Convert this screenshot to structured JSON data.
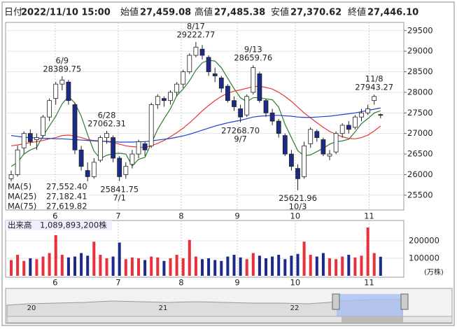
{
  "header": [
    {
      "label": "日付",
      "value": "2022/11/10 15:00",
      "color": "#000000"
    },
    {
      "label": "始値",
      "value": "27,459.08",
      "color": "#000000"
    },
    {
      "label": "高値",
      "value": "27,485.38",
      "color": "#d81b1b"
    },
    {
      "label": "安値",
      "value": "27,370.62",
      "color": "#1b8a1b"
    },
    {
      "label": "終値",
      "value": "27,446.10",
      "color": "#000000"
    }
  ],
  "chart_data": {
    "type": "candlestick",
    "categories": [
      null,
      null,
      null,
      null,
      null,
      null,
      null,
      null,
      "6/9",
      null,
      null,
      null,
      null,
      null,
      null,
      "6/28",
      null,
      "7/1",
      null,
      null,
      null,
      null,
      null,
      null,
      null,
      null,
      null,
      null,
      null,
      "8/17",
      null,
      null,
      null,
      null,
      null,
      null,
      "9/7",
      null,
      "9/13",
      null,
      null,
      null,
      null,
      null,
      null,
      "10/3",
      null,
      null,
      null,
      null,
      null,
      null,
      null,
      null,
      null,
      null,
      null,
      "11/8",
      null
    ],
    "open": [
      25900,
      26000,
      26650,
      27000,
      26850,
      26950,
      27400,
      27850,
      28200,
      28250,
      27700,
      26600,
      26100,
      25950,
      26350,
      26900,
      26900,
      26400,
      26000,
      26250,
      26500,
      26750,
      26700,
      27700,
      27850,
      27800,
      28000,
      28200,
      28500,
      28900,
      29050,
      28850,
      28450,
      28350,
      28150,
      27800,
      27600,
      27450,
      28000,
      28450,
      27800,
      27500,
      27300,
      26950,
      26500,
      26150,
      25950,
      26750,
      27050,
      26850,
      26450,
      26550,
      27000,
      27200,
      27150,
      27400,
      27500,
      27800,
      27459.08
    ],
    "high": [
      26100,
      26700,
      27050,
      27100,
      27000,
      27450,
      27850,
      28250,
      28389.75,
      28300,
      27750,
      26700,
      26300,
      26400,
      26950,
      27062.31,
      26950,
      26450,
      26300,
      26600,
      26850,
      26800,
      27750,
      27950,
      27900,
      28050,
      28250,
      28550,
      28950,
      29222.77,
      29150,
      28900,
      28600,
      28400,
      28200,
      27900,
      27700,
      27950,
      28659.76,
      28500,
      27850,
      27600,
      27350,
      27000,
      26600,
      26250,
      26800,
      27150,
      27100,
      26900,
      26600,
      27050,
      27250,
      27300,
      27450,
      27600,
      27700,
      27943.27,
      27485.38
    ],
    "low": [
      25750,
      25950,
      26500,
      26700,
      26600,
      26900,
      27300,
      27700,
      28050,
      27700,
      26500,
      26100,
      25700,
      25900,
      26300,
      26750,
      26300,
      25841.75,
      25900,
      26150,
      26400,
      26450,
      26650,
      27600,
      27650,
      27700,
      27900,
      28100,
      28450,
      28850,
      28800,
      28400,
      28250,
      28000,
      27750,
      27550,
      27268.7,
      27400,
      27950,
      27750,
      27400,
      27200,
      26900,
      26450,
      26100,
      25621.96,
      25900,
      26650,
      26800,
      26450,
      26350,
      26500,
      26900,
      27000,
      27100,
      27300,
      27450,
      27700,
      27370.62
    ],
    "close": [
      26000,
      26600,
      27000,
      26800,
      26900,
      27400,
      27800,
      28200,
      28300,
      27800,
      26600,
      26200,
      25950,
      26300,
      26900,
      27000,
      26400,
      25950,
      26200,
      26500,
      26800,
      26600,
      27700,
      27900,
      27800,
      28000,
      28200,
      28500,
      28900,
      29100,
      28900,
      28500,
      28400,
      28100,
      27800,
      27650,
      27400,
      27900,
      28600,
      27800,
      27500,
      27300,
      27000,
      26500,
      26200,
      25900,
      26700,
      27100,
      26900,
      26500,
      26500,
      27000,
      27200,
      27100,
      27400,
      27500,
      27600,
      27900,
      27446.1
    ],
    "high_labels": [
      null,
      null,
      null,
      null,
      null,
      null,
      null,
      null,
      "28389.75",
      null,
      null,
      null,
      null,
      null,
      null,
      "27062.31",
      null,
      null,
      null,
      null,
      null,
      null,
      null,
      null,
      null,
      null,
      null,
      null,
      null,
      "29222.77",
      null,
      null,
      null,
      null,
      null,
      null,
      null,
      null,
      "28659.76",
      null,
      null,
      null,
      null,
      null,
      null,
      null,
      null,
      null,
      null,
      null,
      null,
      null,
      null,
      null,
      null,
      null,
      null,
      "27943.27",
      null
    ],
    "low_labels": [
      null,
      null,
      null,
      null,
      null,
      null,
      null,
      null,
      null,
      null,
      null,
      null,
      null,
      null,
      null,
      null,
      null,
      "25841.75",
      null,
      null,
      null,
      null,
      null,
      null,
      null,
      null,
      null,
      null,
      null,
      null,
      null,
      null,
      null,
      null,
      null,
      null,
      "27268.70",
      null,
      null,
      null,
      null,
      null,
      null,
      null,
      null,
      "25621.96",
      null,
      null,
      null,
      null,
      null,
      null,
      null,
      null,
      null,
      null,
      null,
      null,
      null
    ],
    "up_color": "#ffffff",
    "down_color": "#1c2a8a",
    "outline_color": "#222222",
    "ylim": [
      25140,
      29700
    ],
    "yticks": [
      25500,
      26000,
      26500,
      27000,
      27500,
      28000,
      28500,
      29000,
      29500
    ],
    "xticks": [
      {
        "value": 6.9,
        "label": "6"
      },
      {
        "value": 16.8,
        "label": "7"
      },
      {
        "value": 26.7,
        "label": "8"
      },
      {
        "value": 35.5,
        "label": "9"
      },
      {
        "value": 44.6,
        "label": "10"
      },
      {
        "value": 56.2,
        "label": "11"
      }
    ],
    "grid": true,
    "ma": [
      {
        "name": "MA(5)",
        "legend_value": "27,552.40",
        "color": "#2e7d32",
        "values": [
          26200,
          26300,
          26500,
          26600,
          26660,
          26940,
          27180,
          27420,
          27720,
          27900,
          27740,
          27420,
          26970,
          26570,
          26390,
          26470,
          26510,
          26520,
          26500,
          26210,
          26370,
          26420,
          26760,
          27100,
          27360,
          27600,
          27920,
          28080,
          28280,
          28540,
          28720,
          28780,
          28760,
          28600,
          28340,
          28090,
          27870,
          27770,
          27870,
          27870,
          27840,
          27820,
          27640,
          27220,
          26900,
          26580,
          26460,
          26480,
          26560,
          26640,
          26740,
          26800,
          26820,
          26860,
          27040,
          27240,
          27360,
          27500,
          27552.4
        ]
      },
      {
        "name": "MA(25)",
        "legend_value": "27,182.41",
        "color": "#e53935",
        "values": [
          26700,
          26720,
          26750,
          26780,
          26800,
          26830,
          26870,
          26900,
          26950,
          26960,
          26940,
          26900,
          26850,
          26830,
          26820,
          26800,
          26780,
          26740,
          26700,
          26680,
          26670,
          26660,
          26700,
          26760,
          26830,
          26920,
          27020,
          27130,
          27260,
          27400,
          27550,
          27680,
          27800,
          27900,
          27980,
          28030,
          28060,
          28100,
          28140,
          28150,
          28120,
          28080,
          28000,
          27900,
          27780,
          27640,
          27500,
          27380,
          27260,
          27150,
          27050,
          26980,
          26920,
          26880,
          26870,
          26900,
          26960,
          27060,
          27182.41
        ]
      },
      {
        "name": "MA(75)",
        "legend_value": "27,619.82",
        "color": "#1e40d0",
        "values": [
          26950,
          26930,
          26910,
          26900,
          26890,
          26880,
          26880,
          26870,
          26870,
          26860,
          26850,
          26840,
          26830,
          26820,
          26810,
          26810,
          26800,
          26790,
          26790,
          26790,
          26800,
          26800,
          26820,
          26840,
          26860,
          26880,
          26910,
          26940,
          26980,
          27030,
          27080,
          27130,
          27180,
          27220,
          27260,
          27290,
          27320,
          27360,
          27400,
          27420,
          27430,
          27440,
          27440,
          27430,
          27420,
          27400,
          27390,
          27390,
          27400,
          27410,
          27420,
          27440,
          27460,
          27480,
          27500,
          27530,
          27560,
          27590,
          27619.82
        ]
      }
    ],
    "volume": {
      "title": "出来高",
      "total": "1,089,893,200株",
      "unit": "(万株)",
      "up_color": "#e8313a",
      "down_color": "#1c2a8a",
      "ylim": [
        0,
        288000
      ],
      "yticks": [
        100000,
        200000
      ],
      "values": [
        90000,
        120000,
        85000,
        100000,
        95000,
        110000,
        130000,
        232000,
        120000,
        105000,
        110000,
        130000,
        115000,
        195000,
        120000,
        100000,
        110000,
        190000,
        95000,
        105000,
        100000,
        90000,
        110000,
        105000,
        85000,
        100000,
        120000,
        100000,
        205000,
        110000,
        95000,
        100000,
        90000,
        85000,
        110000,
        120000,
        105000,
        95000,
        130000,
        115000,
        100000,
        110000,
        120000,
        95000,
        115000,
        125000,
        195000,
        120000,
        110000,
        130000,
        100000,
        95000,
        110000,
        120000,
        105000,
        115000,
        276000,
        130000,
        108989.32
      ]
    }
  },
  "navigator": {
    "labels": [
      "20",
      "21",
      "22"
    ]
  }
}
